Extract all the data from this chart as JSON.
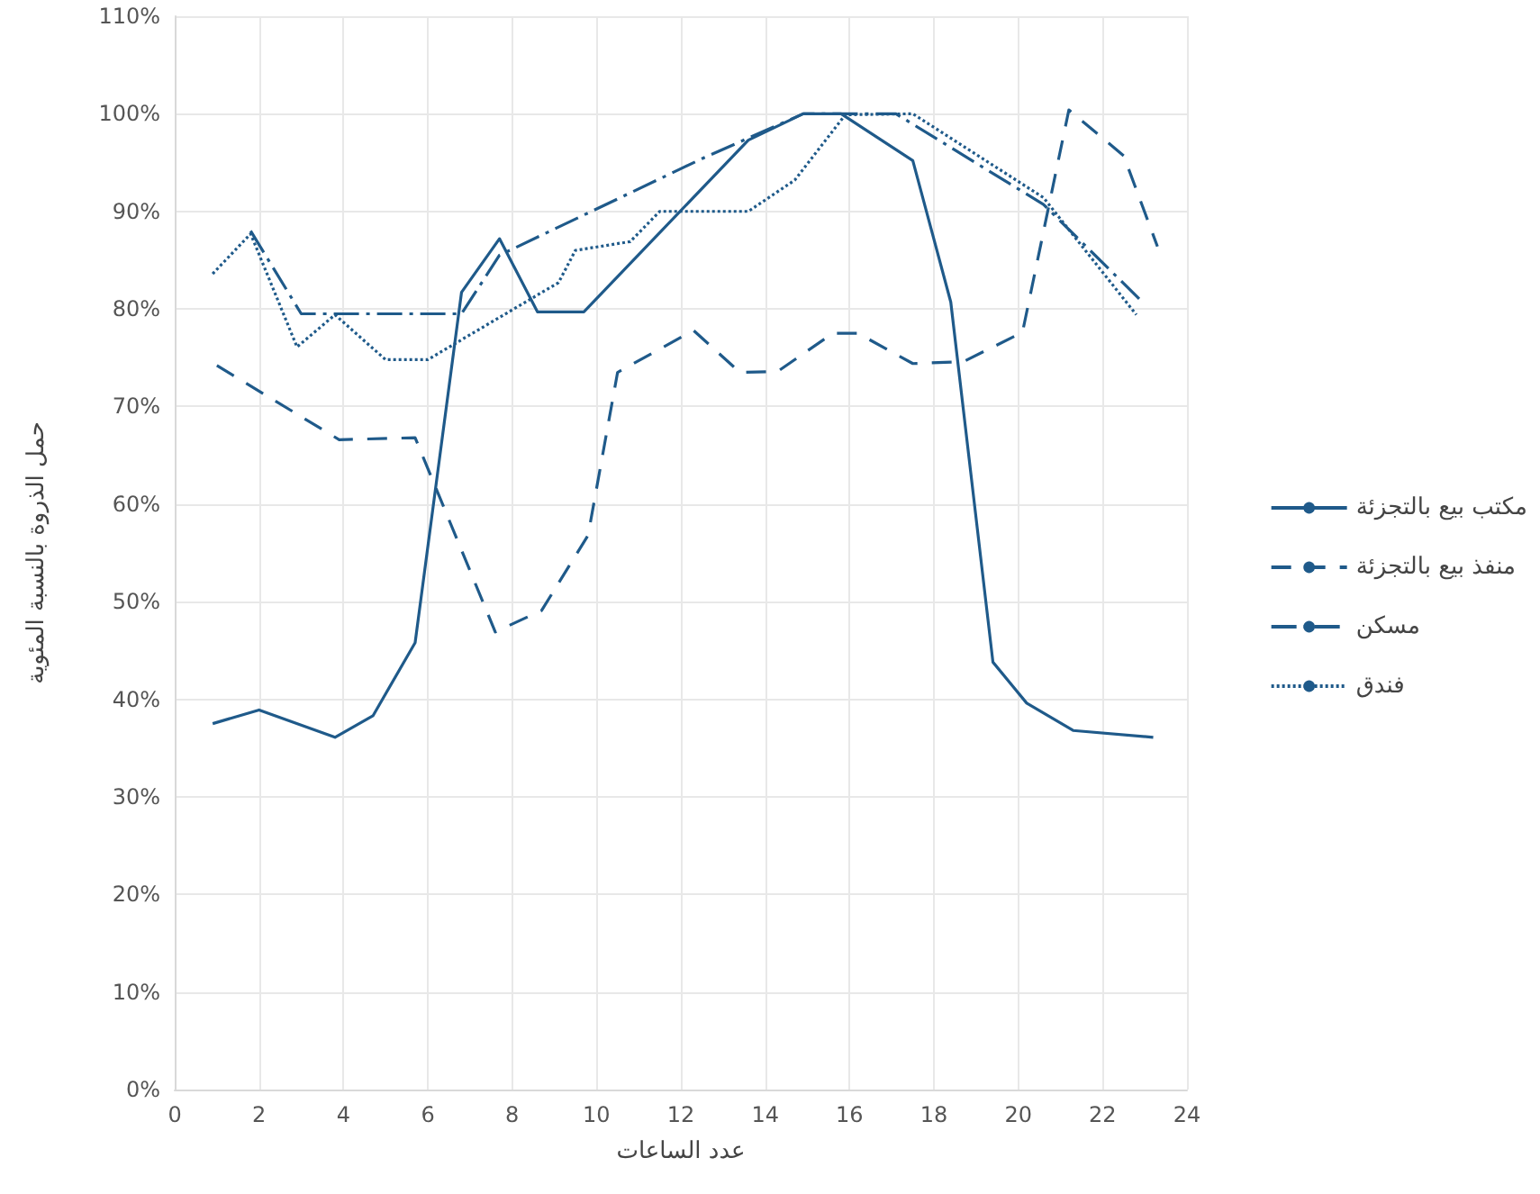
{
  "chart_data": {
    "type": "line",
    "xlabel": "عدد الساعات",
    "ylabel": "حمل الذروة بالنسبة المئوية",
    "xlim": [
      0,
      24
    ],
    "xticks": [
      0,
      2,
      4,
      6,
      8,
      10,
      12,
      14,
      16,
      18,
      20,
      22,
      24
    ],
    "ylim": [
      0,
      110
    ],
    "yticks": [
      {
        "value": 0,
        "label": "0%"
      },
      {
        "value": 10,
        "label": "10%"
      },
      {
        "value": 20,
        "label": "20%"
      },
      {
        "value": 30,
        "label": "30%"
      },
      {
        "value": 40,
        "label": "40%"
      },
      {
        "value": 50,
        "label": "50%"
      },
      {
        "value": 60,
        "label": "60%"
      },
      {
        "value": 70,
        "label": "70%"
      },
      {
        "value": 80,
        "label": "80%"
      },
      {
        "value": 90,
        "label": "90%"
      },
      {
        "value": 100,
        "label": "100%"
      },
      {
        "value": 110,
        "label": "110%"
      }
    ],
    "grid": true,
    "legend": "right",
    "marker": "none",
    "series": [
      {
        "name": "مكتب بيع بالتجزئة",
        "color": "#1f5a8a",
        "line_style": "solid",
        "x": [
          0.9,
          2,
          3.8,
          4.7,
          5.7,
          6.8,
          7.7,
          8.6,
          9.7,
          13.6,
          14.9,
          15.8,
          17.5,
          18.4,
          19.4,
          20.2,
          21.3,
          23.2
        ],
        "values": [
          37.5,
          38.9,
          36.1,
          38.3,
          45.8,
          81.7,
          87.2,
          79.7,
          79.7,
          97.3,
          100,
          100,
          95.2,
          80.7,
          43.8,
          39.6,
          36.8,
          36.1
        ]
      },
      {
        "name": "منفذ بيع بالتجزئة",
        "color": "#1f5a8a",
        "line_style": "dashed",
        "x": [
          1,
          3.9,
          5.7,
          7.6,
          8.7,
          9.8,
          10.5,
          12.3,
          13.4,
          14.3,
          15.6,
          16.2,
          17.5,
          18.7,
          20.1,
          21.2,
          22.5,
          23.3
        ],
        "values": [
          74.2,
          66.6,
          66.8,
          46.9,
          49.1,
          56.8,
          73.5,
          77.8,
          73.5,
          73.6,
          77.5,
          77.5,
          74.4,
          74.6,
          77.6,
          100.4,
          95.7,
          86.4
        ]
      },
      {
        "name": "مسكن",
        "color": "#1f5a8a",
        "line_style": "dashdot",
        "x": [
          1.8,
          3,
          6.8,
          7.7,
          12.5,
          14.9,
          17.1,
          20.6,
          22.9
        ],
        "values": [
          88,
          79.5,
          79.5,
          85.5,
          95.4,
          100,
          100,
          90.7,
          80.9
        ]
      },
      {
        "name": "فندق",
        "color": "#1f5a8a",
        "line_style": "dotted",
        "x": [
          0.9,
          1.8,
          2.9,
          3.8,
          5,
          6,
          9.1,
          9.5,
          10.8,
          11.5,
          13.6,
          14.7,
          15.9,
          17.5,
          20.6,
          22.8
        ],
        "values": [
          83.6,
          87.7,
          76.1,
          79.4,
          74.8,
          74.8,
          82.7,
          86,
          86.9,
          90,
          90,
          93.2,
          99.9,
          100,
          91.4,
          79.4
        ]
      }
    ]
  }
}
